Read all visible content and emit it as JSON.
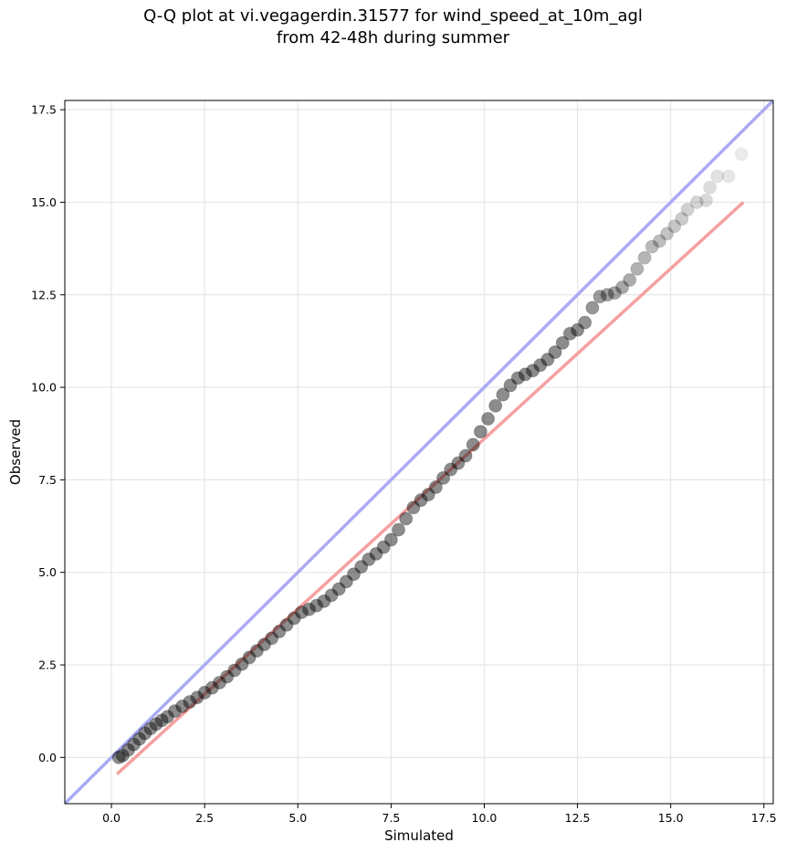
{
  "chart_data": {
    "type": "scatter",
    "title_lines": [
      "Q-Q plot at vi.vegagerdin.31577 for wind_speed_at_10m_agl",
      "from 42-48h during summer"
    ],
    "xlabel": "Simulated",
    "ylabel": "Observed",
    "xlim": [
      -1.25,
      17.75
    ],
    "ylim": [
      -1.25,
      17.75
    ],
    "xticks": [
      0.0,
      2.5,
      5.0,
      7.5,
      10.0,
      12.5,
      15.0,
      17.5
    ],
    "yticks": [
      0.0,
      2.5,
      5.0,
      7.5,
      10.0,
      12.5,
      15.0,
      17.5
    ],
    "xtick_labels": [
      "0.0",
      "2.5",
      "5.0",
      "7.5",
      "10.0",
      "12.5",
      "15.0",
      "17.5"
    ],
    "ytick_labels": [
      "0.0",
      "2.5",
      "5.0",
      "7.5",
      "10.0",
      "12.5",
      "15.0",
      "17.5"
    ],
    "grid": true,
    "series": [
      {
        "kind": "quantile-points",
        "color": "#000000",
        "points": [
          [
            0.2,
            0.0
          ],
          [
            0.3,
            0.05
          ],
          [
            0.45,
            0.2
          ],
          [
            0.6,
            0.35
          ],
          [
            0.75,
            0.5
          ],
          [
            0.9,
            0.65
          ],
          [
            1.05,
            0.78
          ],
          [
            1.2,
            0.9
          ],
          [
            1.35,
            1.0
          ],
          [
            1.5,
            1.1
          ],
          [
            1.7,
            1.25
          ],
          [
            1.9,
            1.38
          ],
          [
            2.1,
            1.5
          ],
          [
            2.3,
            1.62
          ],
          [
            2.5,
            1.75
          ],
          [
            2.7,
            1.88
          ],
          [
            2.9,
            2.02
          ],
          [
            3.1,
            2.18
          ],
          [
            3.3,
            2.35
          ],
          [
            3.5,
            2.52
          ],
          [
            3.7,
            2.7
          ],
          [
            3.9,
            2.88
          ],
          [
            4.1,
            3.05
          ],
          [
            4.3,
            3.22
          ],
          [
            4.5,
            3.4
          ],
          [
            4.7,
            3.58
          ],
          [
            4.9,
            3.76
          ],
          [
            5.1,
            3.92
          ],
          [
            5.3,
            4.0
          ],
          [
            5.5,
            4.1
          ],
          [
            5.7,
            4.22
          ],
          [
            5.9,
            4.38
          ],
          [
            6.1,
            4.55
          ],
          [
            6.3,
            4.75
          ],
          [
            6.5,
            4.95
          ],
          [
            6.7,
            5.15
          ],
          [
            6.9,
            5.35
          ],
          [
            7.1,
            5.5
          ],
          [
            7.3,
            5.68
          ],
          [
            7.5,
            5.88
          ],
          [
            7.7,
            6.15
          ],
          [
            7.9,
            6.45
          ],
          [
            8.1,
            6.75
          ],
          [
            8.3,
            6.95
          ],
          [
            8.5,
            7.1
          ],
          [
            8.7,
            7.3
          ],
          [
            8.9,
            7.55
          ],
          [
            9.1,
            7.78
          ],
          [
            9.3,
            7.95
          ],
          [
            9.5,
            8.15
          ],
          [
            9.7,
            8.45
          ],
          [
            9.9,
            8.8
          ],
          [
            10.1,
            9.15
          ],
          [
            10.3,
            9.5
          ],
          [
            10.5,
            9.8
          ],
          [
            10.7,
            10.05
          ],
          [
            10.9,
            10.25
          ],
          [
            11.1,
            10.35
          ],
          [
            11.3,
            10.45
          ],
          [
            11.5,
            10.6
          ],
          [
            11.7,
            10.75
          ],
          [
            11.9,
            10.95
          ],
          [
            12.1,
            11.2
          ],
          [
            12.3,
            11.45
          ],
          [
            12.5,
            11.55
          ],
          [
            12.7,
            11.75
          ],
          [
            12.9,
            12.15
          ],
          [
            13.1,
            12.45
          ],
          [
            13.3,
            12.5
          ],
          [
            13.5,
            12.55
          ],
          [
            13.7,
            12.7
          ],
          [
            13.9,
            12.9
          ],
          [
            14.1,
            13.2
          ],
          [
            14.3,
            13.5
          ],
          [
            14.5,
            13.8
          ],
          [
            14.7,
            13.95
          ],
          [
            14.9,
            14.15
          ],
          [
            15.1,
            14.35
          ],
          [
            15.3,
            14.55
          ],
          [
            15.45,
            14.8
          ],
          [
            15.7,
            15.0
          ],
          [
            15.95,
            15.05
          ],
          [
            16.05,
            15.4
          ],
          [
            16.25,
            15.7
          ],
          [
            16.55,
            15.7
          ],
          [
            16.9,
            16.3
          ]
        ]
      },
      {
        "kind": "identity-line",
        "color": "#aaaaf5",
        "from": [
          -1.25,
          -1.25
        ],
        "to": [
          17.75,
          17.75
        ]
      },
      {
        "kind": "fit-line",
        "color": "#f5a0a0",
        "from": [
          0.15,
          -0.45
        ],
        "to": [
          16.95,
          15.0
        ]
      }
    ]
  }
}
